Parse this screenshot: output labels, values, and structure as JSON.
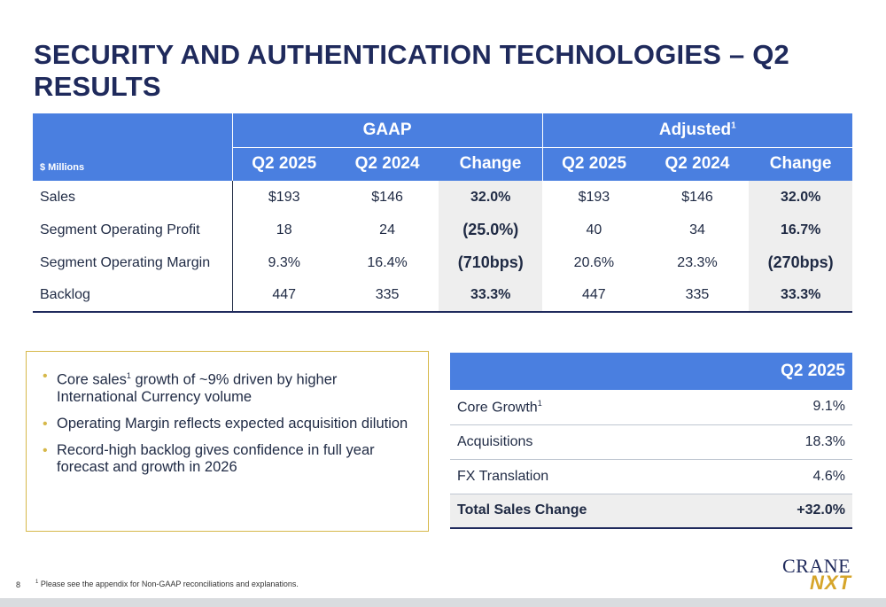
{
  "title": "SECURITY AND AUTHENTICATION TECHNOLOGIES – Q2 RESULTS",
  "results_table": {
    "units_label": "$ Millions",
    "group_gaap": "GAAP",
    "group_adjusted": "Adjusted",
    "group_adjusted_sup": "1",
    "columns": [
      "Q2 2025",
      "Q2 2024",
      "Change",
      "Q2 2025",
      "Q2 2024",
      "Change"
    ],
    "rows": [
      {
        "label": "Sales",
        "values": [
          "$193",
          "$146",
          "32.0%",
          "$193",
          "$146",
          "32.0%"
        ]
      },
      {
        "label": "Segment Operating Profit",
        "values": [
          "18",
          "24",
          "(25.0%)",
          "40",
          "34",
          "16.7%"
        ]
      },
      {
        "label": "Segment Operating Margin",
        "values": [
          "9.3%",
          "16.4%",
          "(710bps)",
          "20.6%",
          "23.3%",
          "(270bps)"
        ]
      },
      {
        "label": "Backlog",
        "values": [
          "447",
          "335",
          "33.3%",
          "447",
          "335",
          "33.3%"
        ]
      }
    ]
  },
  "bullets": [
    {
      "pre": "Core sales",
      "sup": "1",
      "post": " growth of ~9% driven by higher International Currency volume"
    },
    {
      "pre": "Operating Margin reflects expected acquisition dilution",
      "sup": "",
      "post": ""
    },
    {
      "pre": "Record-high backlog gives confidence in full year forecast and growth in 2026",
      "sup": "",
      "post": ""
    }
  ],
  "growth_table": {
    "header": "Q2 2025",
    "rows": [
      {
        "label": "Core Growth",
        "sup": "1",
        "value": "9.1%"
      },
      {
        "label": "Acquisitions",
        "sup": "",
        "value": "18.3%"
      },
      {
        "label": "FX Translation",
        "sup": "",
        "value": "4.6%"
      }
    ],
    "total": {
      "label": "Total Sales Change",
      "value": "+32.0%"
    }
  },
  "page_number": "8",
  "footnote": {
    "sup": "1",
    "text": " Please see the appendix for Non-GAAP reconciliations and explanations."
  },
  "logo": {
    "top": "CRANE",
    "bottom": "NXT"
  },
  "colors": {
    "header_blue": "#4a7fe0",
    "navy": "#1f2a5c",
    "gold": "#d6b84a",
    "shade": "#eeeeee"
  }
}
